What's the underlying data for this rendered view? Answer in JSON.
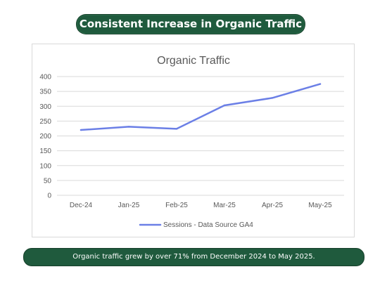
{
  "header": {
    "title": "Consistent Increase in Organic Traffic"
  },
  "summary": {
    "text": "Organic traffic grew by over 71% from December 2024 to May 2025."
  },
  "colors": {
    "pill_background": "#1f5a3d",
    "line": "#6b7fe6",
    "gridline": "#d9d9d9",
    "axis_text": "#595959"
  },
  "chart_data": {
    "type": "line",
    "title": "Organic Traffic",
    "xlabel": "",
    "ylabel": "",
    "categories": [
      "Dec-24",
      "Jan-25",
      "Feb-25",
      "Mar-25",
      "Apr-25",
      "May-25"
    ],
    "series": [
      {
        "name": "Sessions - Data Source GA4",
        "values": [
          220,
          231,
          224,
          303,
          328,
          375
        ]
      }
    ],
    "ylim": [
      0,
      400
    ],
    "yticks": [
      0,
      50,
      100,
      150,
      200,
      250,
      300,
      350,
      400
    ],
    "grid": true,
    "legend": "bottom"
  }
}
